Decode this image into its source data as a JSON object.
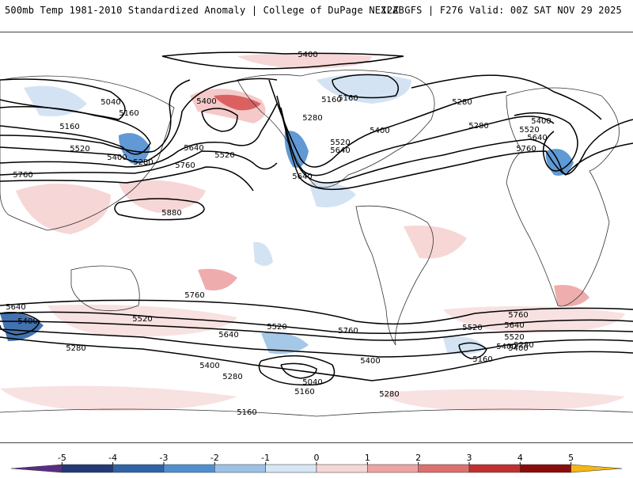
{
  "header": {
    "left": "500mb Temp 1981-2010 Standardized Anomaly | College of DuPage NEXLAB",
    "right": "12Z GFS | F276 Valid: 00Z SAT NOV 29 2025"
  },
  "contour_labels": [
    "5400",
    "5040",
    "5160",
    "5160",
    "5160",
    "5400",
    "5280",
    "5400",
    "5280",
    "5640",
    "5520",
    "5520",
    "5760",
    "5760",
    "5880",
    "5160",
    "5280",
    "5280",
    "5400",
    "5400",
    "5520",
    "5640",
    "5640",
    "5760",
    "5520",
    "5640",
    "5640",
    "5760",
    "5400",
    "5520",
    "5280",
    "5640",
    "5400",
    "5760",
    "5520",
    "5400",
    "5280",
    "5040",
    "5160",
    "5160",
    "5280",
    "5400",
    "5520",
    "5760",
    "5640",
    "5520",
    "5400",
    "5280",
    "5160"
  ],
  "colorbar": {
    "ticks": [
      "-5",
      "-4",
      "-3",
      "-2",
      "-1",
      "0",
      "1",
      "2",
      "3",
      "4",
      "5"
    ],
    "colors": [
      "#5a2d82",
      "#233a78",
      "#2f63a8",
      "#4f8fd0",
      "#9cc2e6",
      "#d6e6f4",
      "#f7d6d6",
      "#eea4a4",
      "#dd6f6f",
      "#c03030",
      "#8b0c0c",
      "#f2b716"
    ]
  }
}
